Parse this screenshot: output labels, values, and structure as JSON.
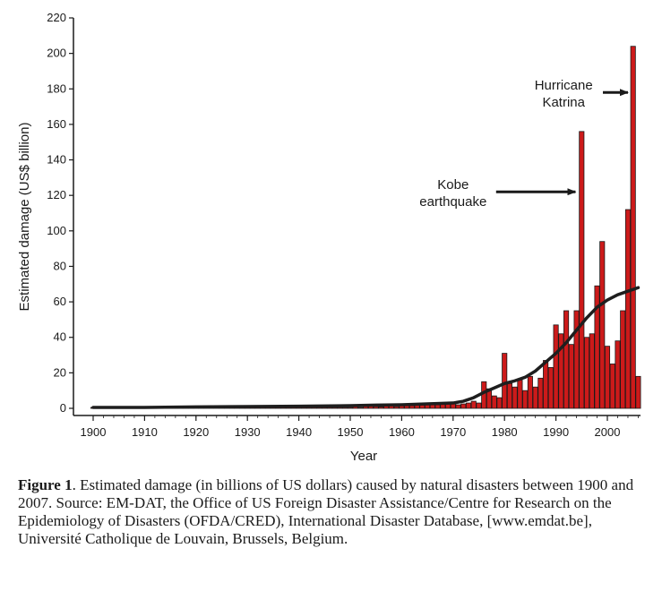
{
  "chart_data": {
    "type": "bar",
    "xlabel": "Year",
    "ylabel": "Estimated damage (US$ billion)",
    "xlim": [
      1900,
      2007
    ],
    "ylim": [
      0,
      220
    ],
    "x_ticks": [
      1900,
      1910,
      1920,
      1930,
      1940,
      1950,
      1960,
      1970,
      1980,
      1990,
      2000
    ],
    "y_ticks": [
      0,
      20,
      40,
      60,
      80,
      100,
      120,
      140,
      160,
      180,
      200,
      220
    ],
    "bar_color": "#cc1a1a",
    "trend_color": "#1e1e1e",
    "series": [
      {
        "type": "bar",
        "years": [
          1900,
          1901,
          1902,
          1903,
          1904,
          1905,
          1906,
          1907,
          1908,
          1909,
          1910,
          1911,
          1912,
          1913,
          1914,
          1915,
          1916,
          1917,
          1918,
          1919,
          1920,
          1921,
          1922,
          1923,
          1924,
          1925,
          1926,
          1927,
          1928,
          1929,
          1930,
          1931,
          1932,
          1933,
          1934,
          1935,
          1936,
          1937,
          1938,
          1939,
          1940,
          1941,
          1942,
          1943,
          1944,
          1945,
          1946,
          1947,
          1948,
          1949,
          1950,
          1951,
          1952,
          1953,
          1954,
          1955,
          1956,
          1957,
          1958,
          1959,
          1960,
          1961,
          1962,
          1963,
          1964,
          1965,
          1966,
          1967,
          1968,
          1969,
          1970,
          1971,
          1972,
          1973,
          1974,
          1975,
          1976,
          1977,
          1978,
          1979,
          1980,
          1981,
          1982,
          1983,
          1984,
          1985,
          1986,
          1987,
          1988,
          1989,
          1990,
          1991,
          1992,
          1993,
          1994,
          1995,
          1996,
          1997,
          1998,
          1999,
          2000,
          2001,
          2002,
          2003,
          2004,
          2005,
          2006
        ],
        "values": [
          0.3,
          0.2,
          0.5,
          0.2,
          0.1,
          0.3,
          0.5,
          0.1,
          0.3,
          0.2,
          0.2,
          0.1,
          0.2,
          0.2,
          0.1,
          0.3,
          0.2,
          0.1,
          0.3,
          0.2,
          0.3,
          0.2,
          0.3,
          0.5,
          0.2,
          0.2,
          0.3,
          0.3,
          0.5,
          0.3,
          0.2,
          0.3,
          0.2,
          0.3,
          0.5,
          0.3,
          0.2,
          0.3,
          0.5,
          0.2,
          0.3,
          0.3,
          0.2,
          0.3,
          0.5,
          0.3,
          0.3,
          0.3,
          0.5,
          0.3,
          0.5,
          1.5,
          0.5,
          1.5,
          1.2,
          1.0,
          0.8,
          1.2,
          2.0,
          1.0,
          1.5,
          1.5,
          1.5,
          2.0,
          2.5,
          2.0,
          2.0,
          2.0,
          2.5,
          2.5,
          2.5,
          2.0,
          2.5,
          3.0,
          4.0,
          3.0,
          15.0,
          11.0,
          7.0,
          6.0,
          31.0,
          14.0,
          12.0,
          16.0,
          10.0,
          18.0,
          12.0,
          17.0,
          27.0,
          23.0,
          47.0,
          42.0,
          55.0,
          36.0,
          55.0,
          156.0,
          40.0,
          42.0,
          69.0,
          94.0,
          35.0,
          25.0,
          38.0,
          55.0,
          112.0,
          204.0,
          18.0
        ]
      },
      {
        "type": "line",
        "name": "trend",
        "x": [
          1900,
          1910,
          1920,
          1930,
          1940,
          1950,
          1955,
          1960,
          1965,
          1970,
          1972,
          1974,
          1976,
          1978,
          1980,
          1982,
          1984,
          1986,
          1988,
          1990,
          1992,
          1994,
          1996,
          1998,
          2000,
          2002,
          2004,
          2006
        ],
        "y": [
          0.5,
          0.5,
          0.8,
          1.0,
          1.2,
          1.5,
          1.8,
          2.0,
          2.5,
          3.0,
          4.0,
          6.0,
          9.0,
          11.5,
          14.0,
          15.5,
          17.5,
          21.0,
          26.0,
          31.0,
          37.0,
          44.0,
          51.0,
          57.0,
          61.0,
          64.0,
          66.0,
          68.0
        ]
      }
    ],
    "annotations": [
      {
        "lines": [
          "Hurricane",
          "Katrina"
        ],
        "target_x": 2004,
        "target_y": 178,
        "text_x": 1991.5,
        "text_y": 178
      },
      {
        "lines": [
          "Kobe",
          "earthquake"
        ],
        "target_x": 1993.8,
        "target_y": 122,
        "text_x": 1970,
        "text_y": 122
      }
    ]
  },
  "caption": {
    "label": "Figure 1",
    "text": ".  Estimated damage (in billions of US dollars) caused by natural disasters between 1900 and 2007. Source: EM-DAT, the Office of US Foreign Disaster Assistance/Centre for Research on the Epidemiology of Disasters (OFDA/CRED), International Disaster Database, [www.emdat.be], Université Catholique de Louvain, Brussels, Belgium."
  }
}
